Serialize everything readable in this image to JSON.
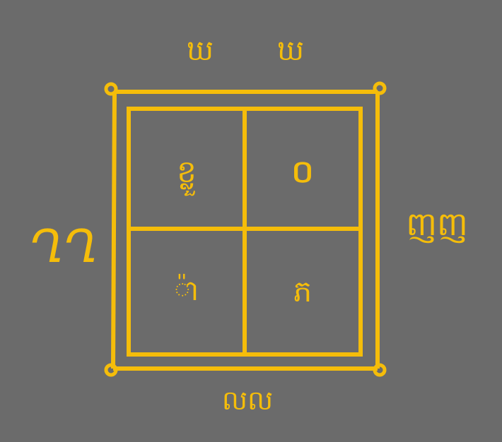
{
  "colors": {
    "background": "#6b6b6b",
    "ink": "#f5bd0a"
  },
  "outer_marks": {
    "top": [
      "ឃ",
      "ឃ"
    ],
    "left": "ՂՂ",
    "right": "ញញ",
    "bottom": "លល"
  },
  "grid": {
    "cells": [
      "ខ្លួ",
      "០",
      "៉ា",
      "ភ"
    ]
  }
}
